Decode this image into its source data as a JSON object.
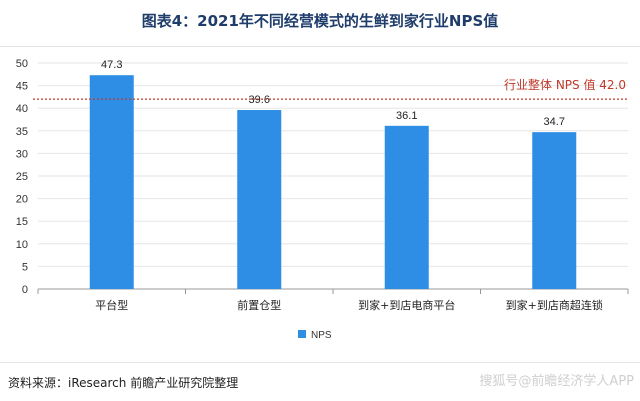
{
  "title": "图表4：2021年不同经营模式的生鲜到家行业NPS值",
  "source": "资料来源：iResearch 前瞻产业研究院整理",
  "watermark": "搜狐号@前瞻经济学人APP",
  "colors": {
    "bar": "#2e8ee6",
    "reference": "#c0392b",
    "grid": "#e6e6e6",
    "axis": "#999999"
  },
  "chart_data": {
    "type": "bar",
    "categories": [
      "平台型",
      "前置仓型",
      "到家+到店电商平台",
      "到家+到店商超连锁"
    ],
    "series": [
      {
        "name": "NPS",
        "values": [
          47.3,
          39.6,
          36.1,
          34.7
        ]
      }
    ],
    "data_labels": [
      "47.3",
      "39.6",
      "36.1",
      "34.7"
    ],
    "yticks": [
      "0",
      "5",
      "10",
      "15",
      "20",
      "25",
      "30",
      "35",
      "40",
      "45",
      "50"
    ],
    "ylim": [
      0,
      50
    ],
    "reference_line": {
      "value": 42.0,
      "label": "行业整体 NPS 值 42.0"
    },
    "legend": {
      "position": "bottom",
      "label": "NPS"
    }
  }
}
